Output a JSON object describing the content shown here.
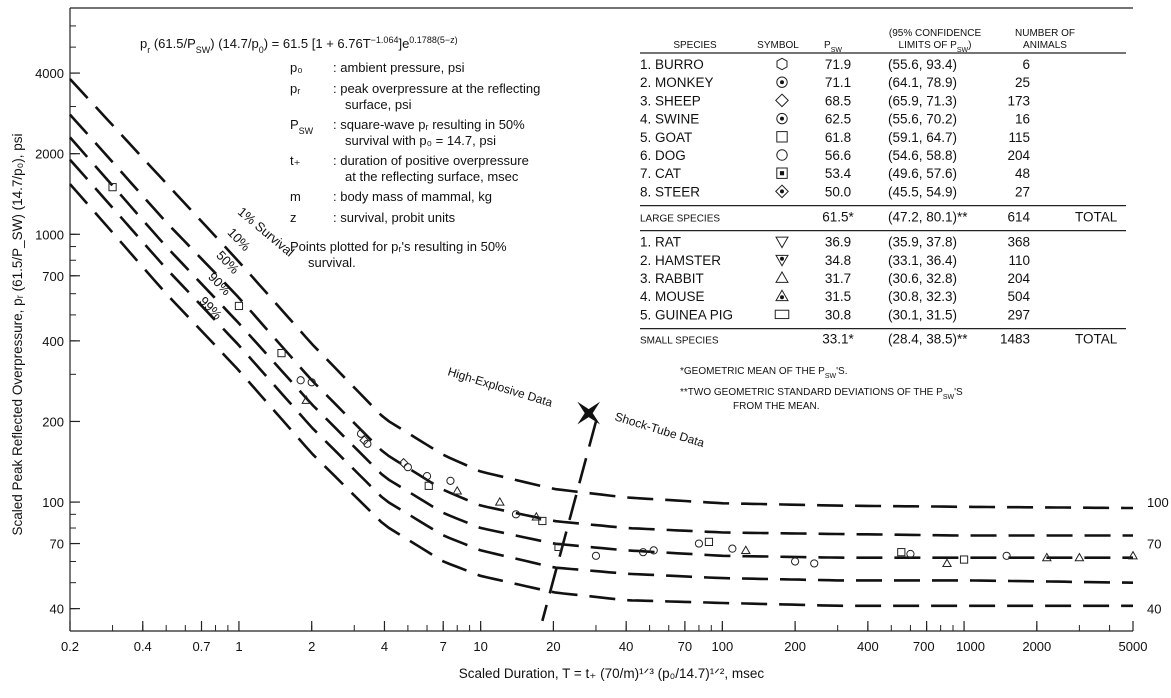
{
  "chart_data": {
    "type": "line",
    "title": "",
    "xlabel": "Scaled Duration, T = t₊ (70/m)¹ᐟ³ (p₀/14.7)¹ᐟ², msec",
    "ylabel": "Scaled Peak Reflected Overpressure, pᵣ (61.5/P_SW) (14.7/p₀), psi",
    "x_scale": "log",
    "y_scale": "log",
    "xlim": [
      0.2,
      5000
    ],
    "ylim": [
      33,
      7000
    ],
    "x_ticks": [
      {
        "value": 0.2,
        "label": "0.2"
      },
      {
        "value": 0.4,
        "label": "0.4"
      },
      {
        "value": 0.7,
        "label": "0.7"
      },
      {
        "value": 1,
        "label": "1"
      },
      {
        "value": 2,
        "label": "2"
      },
      {
        "value": 4,
        "label": "4"
      },
      {
        "value": 7,
        "label": "7"
      },
      {
        "value": 10,
        "label": "10"
      },
      {
        "value": 20,
        "label": "20"
      },
      {
        "value": 40,
        "label": "40"
      },
      {
        "value": 70,
        "label": "70"
      },
      {
        "value": 100,
        "label": "100"
      },
      {
        "value": 200,
        "label": "200"
      },
      {
        "value": 400,
        "label": "400"
      },
      {
        "value": 700,
        "label": "700"
      },
      {
        "value": 1000,
        "label": "1000"
      },
      {
        "value": 2000,
        "label": "2000"
      },
      {
        "value": 5000,
        "label": "5000"
      }
    ],
    "y_ticks": [
      {
        "value": 40,
        "label": "40"
      },
      {
        "value": 70,
        "label": "70"
      },
      {
        "value": 100,
        "label": "100"
      },
      {
        "value": 200,
        "label": "200"
      },
      {
        "value": 400,
        "label": "400"
      },
      {
        "value": 700,
        "label": "700"
      },
      {
        "value": 1000,
        "label": "1000"
      },
      {
        "value": 2000,
        "label": "2000"
      },
      {
        "value": 4000,
        "label": "4000"
      }
    ],
    "right_labels": [
      "100",
      "70",
      "40"
    ],
    "series": [
      {
        "name": "1% Survival",
        "x": [
          0.2,
          0.5,
          1,
          2,
          4,
          7,
          10,
          20,
          40,
          100,
          300,
          1000,
          5000
        ],
        "y": [
          3800,
          1550,
          790,
          390,
          205,
          150,
          130,
          112,
          104,
          99,
          97,
          96,
          95
        ]
      },
      {
        "name": "10%",
        "x": [
          0.2,
          0.5,
          1,
          2,
          4,
          7,
          10,
          20,
          40,
          100,
          300,
          1000,
          5000
        ],
        "y": [
          2800,
          1110,
          580,
          285,
          152,
          111,
          97,
          85,
          80,
          77,
          76,
          75,
          75
        ]
      },
      {
        "name": "50%",
        "x": [
          0.2,
          0.5,
          1,
          2,
          4,
          7,
          10,
          20,
          40,
          100,
          300,
          1000,
          5000
        ],
        "y": [
          2300,
          900,
          465,
          232,
          124,
          91,
          80,
          70,
          66,
          63,
          62,
          62,
          62
        ]
      },
      {
        "name": "90%",
        "x": [
          0.2,
          0.5,
          1,
          2,
          4,
          7,
          10,
          20,
          40,
          100,
          300,
          1000,
          5000
        ],
        "y": [
          1900,
          745,
          385,
          190,
          102,
          75,
          66,
          57,
          54,
          52,
          51,
          51,
          50
        ]
      },
      {
        "name": "99%",
        "x": [
          0.2,
          0.5,
          1,
          2,
          4,
          7,
          10,
          20,
          40,
          100,
          300,
          1000,
          5000
        ],
        "y": [
          1540,
          600,
          310,
          152,
          82,
          60,
          53,
          46,
          43,
          42,
          41,
          41,
          41
        ]
      }
    ],
    "curve_labels": [
      "1% Survival",
      "10%",
      "50%",
      "90%",
      "99%"
    ],
    "points": [
      {
        "x": 0.3,
        "y": 1500,
        "s": "square"
      },
      {
        "x": 1,
        "y": 540,
        "s": "square"
      },
      {
        "x": 1.5,
        "y": 360,
        "s": "square"
      },
      {
        "x": 1.8,
        "y": 285,
        "s": "circle"
      },
      {
        "x": 2,
        "y": 280,
        "s": "circle"
      },
      {
        "x": 1.9,
        "y": 240,
        "s": "triangle"
      },
      {
        "x": 3.2,
        "y": 180,
        "s": "circle"
      },
      {
        "x": 3.3,
        "y": 170,
        "s": "diamond"
      },
      {
        "x": 3.4,
        "y": 165,
        "s": "circle"
      },
      {
        "x": 4.8,
        "y": 140,
        "s": "diamond"
      },
      {
        "x": 5,
        "y": 135,
        "s": "circle"
      },
      {
        "x": 6,
        "y": 125,
        "s": "circle"
      },
      {
        "x": 6.1,
        "y": 115,
        "s": "square"
      },
      {
        "x": 7.5,
        "y": 120,
        "s": "circle"
      },
      {
        "x": 8,
        "y": 110,
        "s": "triangle"
      },
      {
        "x": 12,
        "y": 100,
        "s": "triangle"
      },
      {
        "x": 14,
        "y": 90,
        "s": "circle"
      },
      {
        "x": 17,
        "y": 88,
        "s": "triangle"
      },
      {
        "x": 18,
        "y": 85,
        "s": "square"
      },
      {
        "x": 21,
        "y": 68,
        "s": "square"
      },
      {
        "x": 30,
        "y": 63,
        "s": "circle"
      },
      {
        "x": 47,
        "y": 65,
        "s": "circle"
      },
      {
        "x": 52,
        "y": 66,
        "s": "circle"
      },
      {
        "x": 80,
        "y": 70,
        "s": "circle"
      },
      {
        "x": 88,
        "y": 71,
        "s": "square"
      },
      {
        "x": 110,
        "y": 67,
        "s": "circle"
      },
      {
        "x": 125,
        "y": 66,
        "s": "triangle"
      },
      {
        "x": 200,
        "y": 60,
        "s": "circle"
      },
      {
        "x": 240,
        "y": 59,
        "s": "circle"
      },
      {
        "x": 550,
        "y": 65,
        "s": "square"
      },
      {
        "x": 600,
        "y": 64,
        "s": "circle"
      },
      {
        "x": 850,
        "y": 59,
        "s": "triangle"
      },
      {
        "x": 1000,
        "y": 61,
        "s": "square"
      },
      {
        "x": 1500,
        "y": 63,
        "s": "circle"
      },
      {
        "x": 2200,
        "y": 62,
        "s": "triangle"
      },
      {
        "x": 3000,
        "y": 62,
        "s": "triangle"
      },
      {
        "x": 5000,
        "y": 63,
        "s": "triangle"
      }
    ],
    "divider": {
      "x_top": 30,
      "y_top": 200,
      "x_bottom": 18,
      "y_bottom": 36
    },
    "marker": {
      "x": 28,
      "y": 215
    },
    "annotations": {
      "he": "High-Explosive Data",
      "st": "Shock-Tube Data"
    }
  },
  "legend": {
    "formula_html": "p<tspan baseline-shift='sub' font-size='9'>r</tspan> (61.5/P<tspan baseline-shift='sub' font-size='9'>SW</tspan>) (14.7/p<tspan baseline-shift='sub' font-size='9'>0</tspan>) = 61.5 [1 + 6.76T<tspan baseline-shift='super' font-size='9'>−1.064</tspan>]e<tspan baseline-shift='super' font-size='9'>0.1788(5−z)</tspan>",
    "defs": [
      {
        "sym": "p₀",
        "text": [
          ": ambient pressure, psi"
        ]
      },
      {
        "sym": "pᵣ",
        "text": [
          ": peak overpressure at the reflecting",
          "surface, psi"
        ]
      },
      {
        "sym": "P_SW",
        "text": [
          ": square-wave pᵣ resulting in 50%",
          "survival with p₀ = 14.7, psi"
        ]
      },
      {
        "sym": "t₊",
        "text": [
          ": duration of positive overpressure",
          "at the reflecting surface, msec"
        ]
      },
      {
        "sym": "m",
        "text": [
          ": body mass of mammal, kg"
        ]
      },
      {
        "sym": "z",
        "text": [
          ": survival, probit units"
        ]
      }
    ],
    "note": [
      "Points plotted for pᵣ's resulting in 50%",
      "survival."
    ]
  },
  "table": {
    "headers": {
      "species": "SPECIES",
      "symbol": "SYMBOL",
      "psw": "P_SW",
      "ci1": "(95% CONFIDENCE",
      "ci2": "LIMITS OF P_SW)",
      "n1": "NUMBER OF",
      "n2": "ANIMALS"
    },
    "large": [
      {
        "name": "1. BURRO",
        "sym": "hexagon",
        "psw": "71.9",
        "ci": "(55.6, 93.4)",
        "n": "6"
      },
      {
        "name": "2. MONKEY",
        "sym": "circle-dot",
        "psw": "71.1",
        "ci": "(64.1, 78.9)",
        "n": "25"
      },
      {
        "name": "3. SHEEP",
        "sym": "diamond",
        "psw": "68.5",
        "ci": "(65.9, 71.3)",
        "n": "173"
      },
      {
        "name": "4. SWINE",
        "sym": "circle-dot",
        "psw": "62.5",
        "ci": "(55.6, 70.2)",
        "n": "16"
      },
      {
        "name": "5. GOAT",
        "sym": "square",
        "psw": "61.8",
        "ci": "(59.1, 64.7)",
        "n": "115"
      },
      {
        "name": "6. DOG",
        "sym": "circle",
        "psw": "56.6",
        "ci": "(54.6, 58.8)",
        "n": "204"
      },
      {
        "name": "7. CAT",
        "sym": "square-dot",
        "psw": "53.4",
        "ci": "(49.6, 57.6)",
        "n": "48"
      },
      {
        "name": "8. STEER",
        "sym": "diamond-dot",
        "psw": "50.0",
        "ci": "(45.5, 54.9)",
        "n": "27"
      }
    ],
    "large_total": {
      "name": "LARGE SPECIES",
      "psw": "61.5*",
      "ci": "(47.2, 80.1)**",
      "n": "614",
      "total": "TOTAL"
    },
    "small": [
      {
        "name": "1. RAT",
        "sym": "triangle-down",
        "psw": "36.9",
        "ci": "(35.9, 37.8)",
        "n": "368"
      },
      {
        "name": "2. HAMSTER",
        "sym": "triangle-down-dot",
        "psw": "34.8",
        "ci": "(33.1, 36.4)",
        "n": "110"
      },
      {
        "name": "3. RABBIT",
        "sym": "triangle",
        "psw": "31.7",
        "ci": "(30.6, 32.8)",
        "n": "204"
      },
      {
        "name": "4. MOUSE",
        "sym": "triangle-dot",
        "psw": "31.5",
        "ci": "(30.8, 32.3)",
        "n": "504"
      },
      {
        "name": "5. GUINEA PIG",
        "sym": "rect",
        "psw": "30.8",
        "ci": "(30.1, 31.5)",
        "n": "297"
      }
    ],
    "small_total": {
      "name": "SMALL SPECIES",
      "psw": "33.1*",
      "ci": "(28.4, 38.5)**",
      "n": "1483",
      "total": "TOTAL"
    },
    "footnote1": "*GEOMETRIC MEAN OF THE P_SW'S.",
    "footnote2a": "**TWO GEOMETRIC STANDARD DEVIATIONS OF THE P_SW'S",
    "footnote2b": "FROM THE MEAN."
  }
}
